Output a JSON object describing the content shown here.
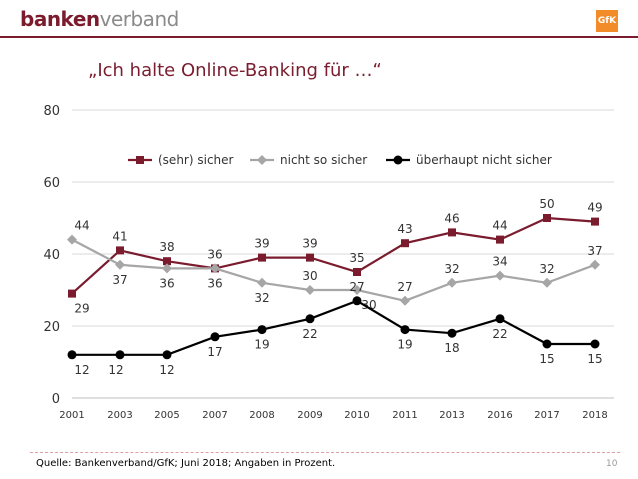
{
  "header": {
    "logo_part1": "banken",
    "logo_part2": "verband",
    "partner_logo": "GfK"
  },
  "footer": {
    "source": "Quelle: Bankenverband/GfK; Juni 2018; Angaben in Prozent.",
    "page_number": "10"
  },
  "chart_data": {
    "type": "line",
    "title": "„Ich halte Online-Banking für …“",
    "xlabel": "",
    "ylabel": "",
    "categories": [
      "2001",
      "2003",
      "2005",
      "2007",
      "2008",
      "2009",
      "2010",
      "2011",
      "2013",
      "2016",
      "2017",
      "2018"
    ],
    "ylim": [
      0,
      80
    ],
    "yticks": [
      0,
      20,
      40,
      60,
      80
    ],
    "grid": true,
    "legend": "top-center",
    "series": [
      {
        "name": "(sehr) sicher",
        "color": "#7a1c2e",
        "marker": "square",
        "values": [
          29,
          41,
          38,
          36,
          39,
          39,
          35,
          43,
          46,
          44,
          50,
          49
        ]
      },
      {
        "name": "nicht so sicher",
        "color": "#a6a6a6",
        "marker": "diamond",
        "values": [
          44,
          37,
          36,
          36,
          32,
          30,
          30,
          27,
          32,
          34,
          32,
          37
        ]
      },
      {
        "name": "überhaupt nicht sicher",
        "color": "#000000",
        "marker": "circle",
        "values": [
          12,
          12,
          12,
          17,
          19,
          22,
          27,
          19,
          18,
          22,
          15,
          15
        ]
      }
    ]
  }
}
